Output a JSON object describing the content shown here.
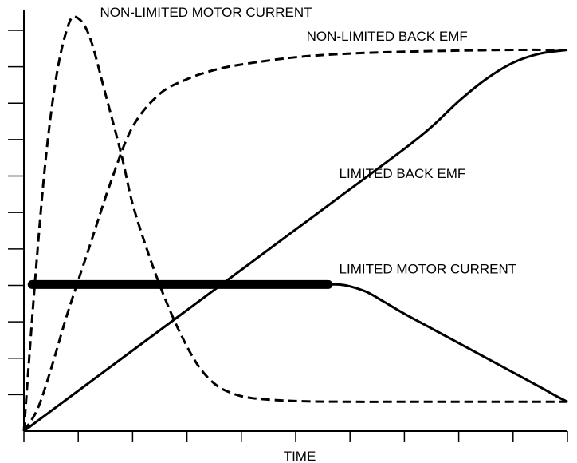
{
  "chart_data": {
    "type": "line",
    "title": "",
    "xlabel": "TIME",
    "ylabel": "",
    "xlim": [
      0,
      10
    ],
    "ylim": [
      0,
      11.5
    ],
    "x_tick_count": 11,
    "y_tick_count": 12,
    "x_tick_labels": [],
    "y_tick_labels": [],
    "grid": false,
    "series": [
      {
        "name": "NON-LIMITED MOTOR CURRENT",
        "style": "dashed",
        "color": "#000000",
        "x": [
          0,
          0.2,
          0.4,
          0.6,
          0.8,
          0.95,
          1.2,
          1.5,
          1.8,
          2.0,
          2.3,
          2.6,
          2.9,
          3.2,
          3.5,
          3.8,
          4.2,
          5.0,
          6.0,
          7.0,
          8.0,
          9.0,
          10.0
        ],
        "y": [
          0,
          4.0,
          7.4,
          9.7,
          11.0,
          11.3,
          10.8,
          9.2,
          7.5,
          6.2,
          4.8,
          3.6,
          2.6,
          1.8,
          1.3,
          1.05,
          0.9,
          0.82,
          0.8,
          0.8,
          0.8,
          0.8,
          0.8
        ]
      },
      {
        "name": "NON-LIMITED BACK EMF",
        "style": "dashed",
        "color": "#000000",
        "x": [
          0,
          0.25,
          0.5,
          0.8,
          1.2,
          1.6,
          2.0,
          2.5,
          3.0,
          3.5,
          4.0,
          5.0,
          6.0,
          7.0,
          8.0,
          9.0,
          10.0
        ],
        "y": [
          0,
          0.6,
          1.7,
          3.2,
          5.0,
          6.8,
          8.3,
          9.2,
          9.6,
          9.85,
          10.0,
          10.2,
          10.3,
          10.35,
          10.38,
          10.4,
          10.4
        ]
      },
      {
        "name": "LIMITED BACK EMF",
        "style": "solid",
        "color": "#000000",
        "x": [
          0,
          1,
          2,
          3,
          4,
          5,
          6,
          7,
          7.5,
          8,
          8.5,
          9,
          9.5,
          10
        ],
        "y": [
          0,
          1.1,
          2.2,
          3.3,
          4.4,
          5.5,
          6.6,
          7.7,
          8.3,
          9.0,
          9.6,
          10.05,
          10.3,
          10.4
        ]
      },
      {
        "name": "LIMITED MOTOR CURRENT",
        "style": "solid",
        "color": "#000000",
        "x": [
          5.6,
          5.8,
          6.0,
          6.3,
          6.6,
          7.0,
          7.5,
          8.0,
          8.5,
          9.0,
          9.5,
          9.8,
          10.0
        ],
        "y": [
          4.0,
          4.0,
          3.95,
          3.8,
          3.55,
          3.2,
          2.8,
          2.4,
          2.0,
          1.6,
          1.2,
          0.95,
          0.8
        ]
      },
      {
        "name": "LIMITED MOTOR CURRENT (limited region)",
        "style": "thick",
        "color": "#000000",
        "x": [
          0.15,
          5.6
        ],
        "y": [
          4.0,
          4.0
        ]
      }
    ],
    "annotations": [
      {
        "text": "NON-LIMITED MOTOR CURRENT",
        "x": 1.4,
        "y": 11.3
      },
      {
        "text": "NON-LIMITED BACK EMF",
        "x": 5.2,
        "y": 10.65
      },
      {
        "text": "LIMITED BACK EMF",
        "x": 5.8,
        "y": 6.9
      },
      {
        "text": "LIMITED MOTOR CURRENT",
        "x": 5.8,
        "y": 4.3
      }
    ]
  }
}
